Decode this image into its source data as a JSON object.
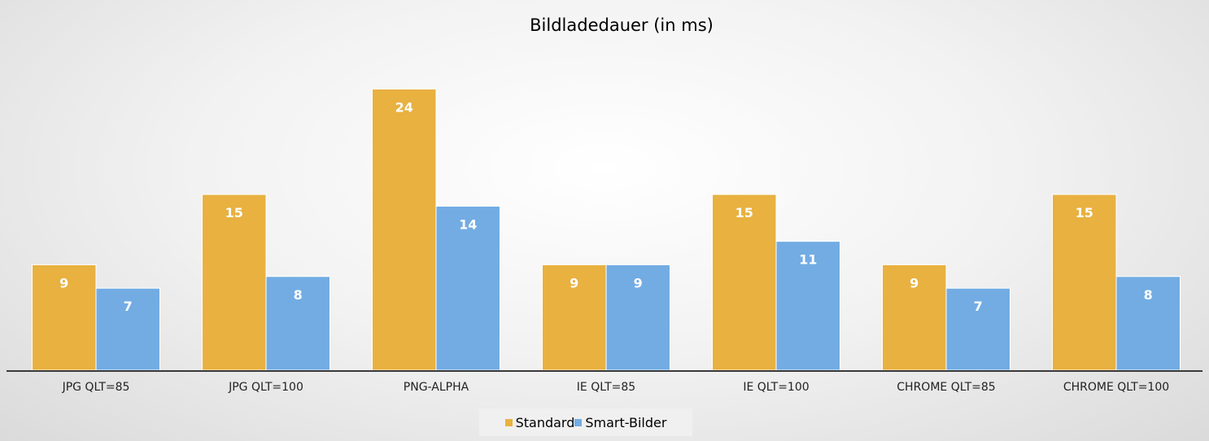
{
  "chart_data": {
    "type": "bar",
    "title": "Bildladedauer (in ms)",
    "categories": [
      "JPG QLT=85",
      "JPG QLT=100",
      "PNG-ALPHA",
      "IE QLT=85",
      "IE QLT=100",
      "CHROME QLT=85",
      "CHROME QLT=100"
    ],
    "series": [
      {
        "name": "Standard",
        "color": "#E8B140",
        "values": [
          9,
          15,
          24,
          9,
          15,
          9,
          15
        ]
      },
      {
        "name": "Smart-Bilder",
        "color": "#72ACE3",
        "values": [
          7,
          8,
          14,
          9,
          11,
          7,
          8
        ]
      }
    ],
    "ylim": [
      0,
      25
    ],
    "grid": false,
    "legend_position": "bottom",
    "data_labels": true
  }
}
